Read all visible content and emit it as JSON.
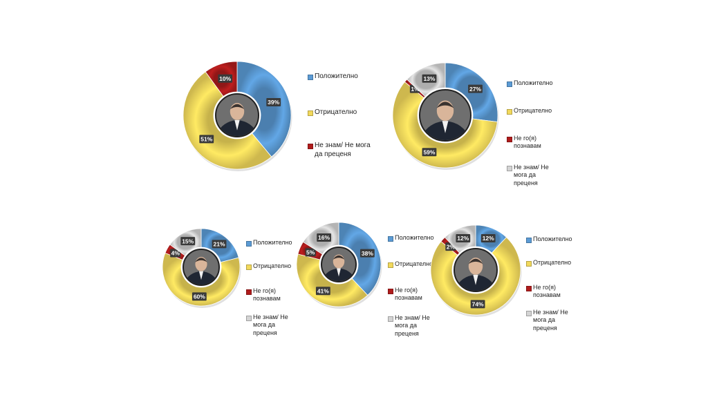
{
  "colors": {
    "positive": "#5b9bd5",
    "negative": "#f2d95c",
    "dont_know_them": "#b01c1c",
    "cant_say": "#d4d4d4",
    "label_box": "#3a3a3a"
  },
  "portrait_icon": "person-portrait-icon",
  "chart_data": [
    {
      "type": "pie",
      "title": "",
      "categories": [
        "Положително",
        "Отрицателно",
        "Не знам/ Не мога да преценя"
      ],
      "values": [
        39,
        51,
        10
      ],
      "labels": [
        "39%",
        "51%",
        "10%"
      ],
      "color_keys": [
        "positive",
        "negative",
        "dont_know_them"
      ],
      "legend_placement": "right"
    },
    {
      "type": "pie",
      "title": "",
      "categories": [
        "Положително",
        "Отрицателно",
        "Не го(я) познавам",
        "Не знам/ Не мога да преценя"
      ],
      "values": [
        27,
        59,
        1,
        13
      ],
      "labels": [
        "27%",
        "59%",
        "1%",
        "13%"
      ],
      "color_keys": [
        "positive",
        "negative",
        "dont_know_them",
        "cant_say"
      ],
      "legend_placement": "right"
    },
    {
      "type": "pie",
      "title": "",
      "categories": [
        "Положително",
        "Отрицателно",
        "Не го(я) познавам",
        "Не знам/ Не мога да преценя"
      ],
      "values": [
        21,
        60,
        4,
        15
      ],
      "labels": [
        "21%",
        "60%",
        "4%",
        "15%"
      ],
      "color_keys": [
        "positive",
        "negative",
        "dont_know_them",
        "cant_say"
      ],
      "legend_placement": "right"
    },
    {
      "type": "pie",
      "title": "",
      "categories": [
        "Положително",
        "Отрицателно",
        "Не го(я) познавам",
        "Не знам/ Не мога да преценя"
      ],
      "values": [
        38,
        41,
        5,
        16
      ],
      "labels": [
        "38%",
        "41%",
        "5%",
        "16%"
      ],
      "color_keys": [
        "positive",
        "negative",
        "dont_know_them",
        "cant_say"
      ],
      "legend_placement": "right"
    },
    {
      "type": "pie",
      "title": "",
      "categories": [
        "Положително",
        "Отрицателно",
        "Не го(я) познавам",
        "Не знам/ Не мога да преценя"
      ],
      "values": [
        12,
        74,
        2,
        12
      ],
      "labels": [
        "12%",
        "74%",
        "2%",
        "12%"
      ],
      "color_keys": [
        "positive",
        "negative",
        "dont_know_them",
        "cant_say"
      ],
      "legend_placement": "right"
    }
  ]
}
